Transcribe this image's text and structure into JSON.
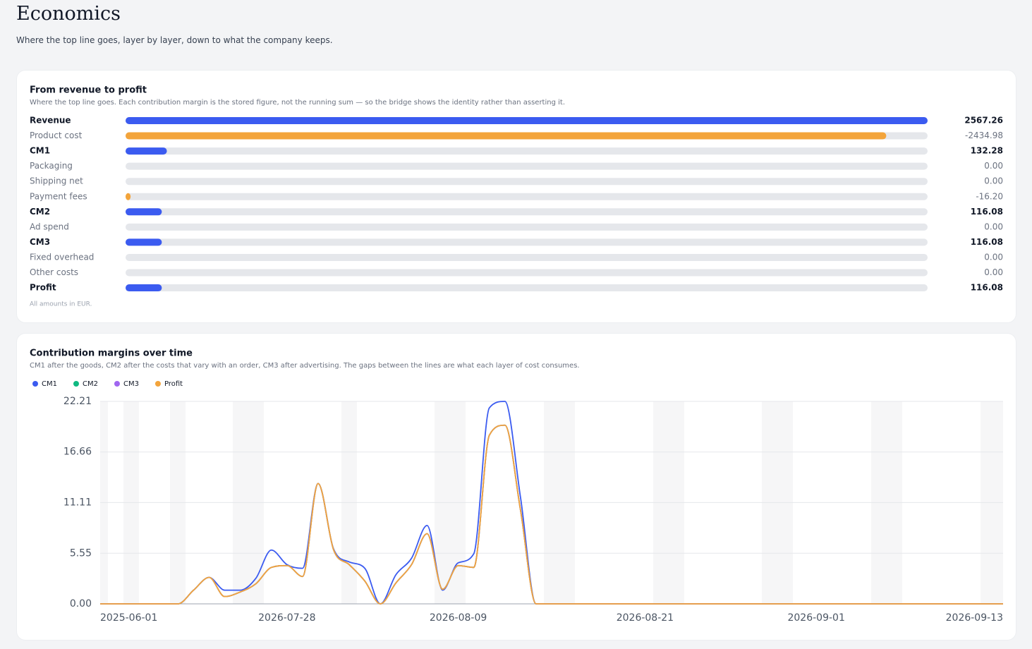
{
  "header": {
    "title": "Economics",
    "subtitle": "Where the top line goes, layer by layer, down to what the company keeps."
  },
  "chart_data": [
    {
      "type": "bar",
      "orientation": "horizontal",
      "title": "From revenue to profit",
      "subtitle": "Where the top line goes. Each contribution margin is the stored figure, not the running sum — so the bridge shows the identity rather than asserting it.",
      "note": "All amounts in EUR.",
      "categories": [
        "Revenue",
        "Product cost",
        "CM1",
        "Packaging",
        "Shipping net",
        "Payment fees",
        "CM2",
        "Ad spend",
        "CM3",
        "Fixed overhead",
        "Other costs",
        "Profit"
      ],
      "values": [
        2567.26,
        -2434.98,
        132.28,
        0,
        0,
        -16.2,
        116.08,
        0,
        116.08,
        0,
        0,
        116.08
      ],
      "value_labels": [
        "2567.26",
        "-2434.98",
        "132.28",
        "0.00",
        "0.00",
        "-16.20",
        "116.08",
        "0.00",
        "116.08",
        "0.00",
        "0.00",
        "116.08"
      ],
      "colors": [
        "#3b5bf0",
        "#f3a43b",
        "#3b5bf0",
        "#f3a43b",
        "#f3a43b",
        "#f3a43b",
        "#3b5bf0",
        "#f3a43b",
        "#3b5bf0",
        "#f3a43b",
        "#f3a43b",
        "#3b5bf0"
      ],
      "bold": [
        true,
        false,
        true,
        false,
        false,
        false,
        true,
        false,
        true,
        false,
        false,
        true
      ]
    },
    {
      "type": "line",
      "title": "Contribution margins over time",
      "subtitle": "CM1 after the goods, CM2 after the costs that vary with an order, CM3 after advertising. The gaps between the lines are what each layer of cost consumes.",
      "categories": [
        "2025-06-01",
        null,
        null,
        null,
        null,
        null,
        null,
        null,
        null,
        null,
        null,
        null,
        "2026-07-28",
        null,
        null,
        null,
        null,
        null,
        null,
        null,
        null,
        null,
        null,
        "2026-08-09",
        null,
        null,
        null,
        null,
        null,
        null,
        null,
        null,
        null,
        null,
        null,
        "2026-08-21",
        null,
        null,
        null,
        null,
        null,
        null,
        null,
        null,
        null,
        null,
        "2026-09-01",
        null,
        null,
        null,
        null,
        null,
        null,
        null,
        null,
        null,
        null,
        null,
        "2026-09-13"
      ],
      "ylim": [
        0,
        22.21
      ],
      "yticks": [
        {
          "value": 0,
          "label": "0.00"
        },
        5.55,
        11.11,
        16.66,
        22.21
      ],
      "grid": true,
      "legend": "top-left",
      "series": [
        {
          "name": "CM1",
          "color": "#3b5bf0",
          "values": [
            0,
            0,
            0,
            0,
            0,
            0,
            1.5,
            2.9,
            1.5,
            1.5,
            2.8,
            5.9,
            4.3,
            3.9,
            13.2,
            6.0,
            4.6,
            3.9,
            0,
            3.2,
            5.0,
            8.6,
            1.5,
            4.5,
            5.5,
            21.5,
            22.21,
            11.7,
            0,
            0,
            0,
            0,
            0,
            0,
            0,
            0,
            0,
            0,
            0,
            0,
            0,
            0,
            0,
            0,
            0,
            0,
            0,
            0,
            0,
            0,
            0,
            0,
            0,
            0,
            0,
            0,
            0,
            0,
            0
          ]
        },
        {
          "name": "CM2",
          "color": "#10b981",
          "values": [
            0,
            0,
            0,
            0,
            0,
            0,
            1.5,
            2.9,
            0.8,
            1.3,
            2.2,
            4.0,
            4.2,
            3.0,
            13.2,
            5.9,
            4.3,
            2.5,
            0,
            2.3,
            4.3,
            7.7,
            1.6,
            4.2,
            4.0,
            18.5,
            19.6,
            10.3,
            0,
            0,
            0,
            0,
            0,
            0,
            0,
            0,
            0,
            0,
            0,
            0,
            0,
            0,
            0,
            0,
            0,
            0,
            0,
            0,
            0,
            0,
            0,
            0,
            0,
            0,
            0,
            0,
            0,
            0,
            0
          ]
        },
        {
          "name": "CM3",
          "color": "#a066f0",
          "values": [
            0,
            0,
            0,
            0,
            0,
            0,
            1.5,
            2.9,
            0.8,
            1.3,
            2.2,
            4.0,
            4.2,
            3.0,
            13.2,
            5.9,
            4.3,
            2.5,
            0,
            2.3,
            4.3,
            7.7,
            1.6,
            4.2,
            4.0,
            18.5,
            19.6,
            10.3,
            0,
            0,
            0,
            0,
            0,
            0,
            0,
            0,
            0,
            0,
            0,
            0,
            0,
            0,
            0,
            0,
            0,
            0,
            0,
            0,
            0,
            0,
            0,
            0,
            0,
            0,
            0,
            0,
            0,
            0,
            0
          ]
        },
        {
          "name": "Profit",
          "color": "#f3a43b",
          "values": [
            0,
            0,
            0,
            0,
            0,
            0,
            1.5,
            2.9,
            0.8,
            1.3,
            2.2,
            4.0,
            4.2,
            3.0,
            13.2,
            5.9,
            4.3,
            2.5,
            0,
            2.3,
            4.3,
            7.7,
            1.6,
            4.2,
            4.0,
            18.5,
            19.6,
            10.3,
            0,
            0,
            0,
            0,
            0,
            0,
            0,
            0,
            0,
            0,
            0,
            0,
            0,
            0,
            0,
            0,
            0,
            0,
            0,
            0,
            0,
            0,
            0,
            0,
            0,
            0,
            0,
            0,
            0,
            0,
            0
          ]
        }
      ]
    }
  ]
}
